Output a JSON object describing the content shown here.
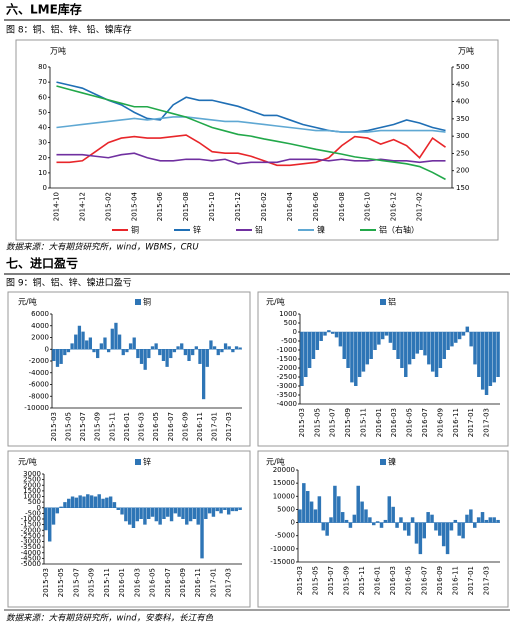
{
  "heading1": "六、LME库存",
  "caption1": "图 8：铜、铝、锌、铅、镍库存",
  "source1": "数据来源：大有期货研究所，wind，WBMS，CRU",
  "heading2": "七、进口盈亏",
  "caption2": "图 9：铜、铝、锌、镍进口盈亏",
  "source2": "数据来源：大有期货研究所，wind，安泰科，长江有色",
  "chart_data": [
    {
      "type": "line",
      "ylabel": "万吨",
      "y2label": "万吨",
      "categories": [
        "2014-10",
        null,
        "2014-12",
        null,
        "2015-02",
        null,
        "2015-04",
        null,
        "2015-06",
        null,
        "2015-08",
        null,
        "2015-10",
        null,
        "2015-12",
        null,
        "2016-02",
        null,
        "2016-04",
        null,
        "2016-06",
        null,
        "2016-08",
        null,
        "2016-10",
        null,
        "2016-12",
        null,
        "2017-02",
        null,
        null
      ],
      "ylim": [
        0,
        80
      ],
      "yticks": [
        0,
        10,
        20,
        30,
        40,
        50,
        60,
        70,
        80
      ],
      "y2lim": [
        150,
        500
      ],
      "y2ticks": [
        150,
        200,
        250,
        300,
        350,
        400,
        450,
        500
      ],
      "series": [
        {
          "name": "铜",
          "color": "#e8262a",
          "values": [
            17,
            17,
            18,
            24,
            30,
            33,
            34,
            33,
            33,
            34,
            35,
            30,
            24,
            23,
            23,
            21,
            18,
            15,
            15,
            16,
            17,
            20,
            28,
            34,
            33,
            29,
            32,
            28,
            20,
            33,
            27
          ]
        },
        {
          "name": "锌",
          "color": "#1f6fb5",
          "values": [
            70,
            68,
            66,
            62,
            58,
            55,
            50,
            46,
            45,
            55,
            60,
            58,
            58,
            56,
            54,
            51,
            48,
            48,
            45,
            42,
            40,
            38,
            37,
            37,
            38,
            40,
            42,
            45,
            43,
            40,
            38
          ]
        },
        {
          "name": "铅",
          "color": "#7030a0",
          "values": [
            22,
            22,
            22,
            21,
            20,
            22,
            23,
            20,
            18,
            18,
            19,
            19,
            18,
            19,
            16,
            17,
            17,
            17,
            19,
            19,
            19,
            18,
            19,
            18,
            18,
            19,
            18,
            18,
            17,
            18,
            18
          ]
        },
        {
          "name": "镍",
          "color": "#5fa8d3",
          "values": [
            40,
            41,
            42,
            43,
            44,
            45,
            46,
            45,
            46,
            47,
            47,
            46,
            45,
            44,
            44,
            43,
            42,
            41,
            40,
            39,
            38,
            38,
            37,
            37,
            37,
            38,
            38,
            38,
            38,
            38,
            37
          ]
        },
        {
          "name": "铝（右轴）",
          "color": "#22a84a",
          "axis": "y2",
          "values": [
            445,
            435,
            425,
            415,
            405,
            395,
            385,
            385,
            375,
            365,
            355,
            340,
            325,
            315,
            305,
            300,
            292,
            285,
            278,
            270,
            262,
            255,
            248,
            240,
            235,
            230,
            225,
            220,
            212,
            195,
            175
          ]
        }
      ]
    },
    {
      "type": "bar",
      "ylabel": "元/吨",
      "categories": [
        "2015-03",
        null,
        null,
        null,
        "2015-05",
        null,
        null,
        null,
        "2015-07",
        null,
        null,
        null,
        "2015-09",
        null,
        null,
        null,
        "2015-11",
        null,
        null,
        null,
        "2016-01",
        null,
        null,
        null,
        "2016-03",
        null,
        null,
        null,
        "2016-05",
        null,
        null,
        null,
        "2016-07",
        null,
        null,
        null,
        "2016-09",
        null,
        null,
        null,
        "2016-11",
        null,
        null,
        null,
        "2017-01",
        null,
        null,
        null,
        "2017-03",
        null,
        null,
        null
      ],
      "ylim": [
        -10000,
        6000
      ],
      "yticks": [
        -10000,
        -8000,
        -6000,
        -4000,
        -2000,
        0,
        2000,
        4000,
        6000
      ],
      "series": [
        {
          "name": "铜",
          "color": "#2e75b6",
          "values": [
            -2000,
            -3000,
            -2500,
            -1000,
            -500,
            1000,
            2500,
            4000,
            3000,
            1500,
            2000,
            -500,
            -1500,
            1000,
            2000,
            -500,
            3500,
            4500,
            2500,
            -1000,
            -500,
            1000,
            2000,
            -1500,
            -2500,
            -3500,
            -1500,
            500,
            1000,
            -1000,
            -2000,
            -3000,
            -1500,
            -500,
            500,
            1000,
            -1000,
            -2000,
            -1000,
            500,
            -2500,
            -8500,
            -3000,
            1500,
            500,
            -1000,
            -500,
            1000,
            500,
            -500,
            500,
            300
          ]
        }
      ]
    },
    {
      "type": "bar",
      "ylabel": "元/吨",
      "categories": [
        "2015-03",
        null,
        null,
        null,
        "2015-05",
        null,
        null,
        null,
        "2015-07",
        null,
        null,
        null,
        "2015-09",
        null,
        null,
        null,
        "2015-11",
        null,
        null,
        null,
        "2016-01",
        null,
        null,
        null,
        "2016-03",
        null,
        null,
        null,
        "2016-05",
        null,
        null,
        null,
        "2016-07",
        null,
        null,
        null,
        "2016-09",
        null,
        null,
        null,
        "2016-11",
        null,
        null,
        null,
        "2017-01",
        null,
        null,
        null,
        "2017-03",
        null,
        null,
        null
      ],
      "ylim": [
        -4000,
        1000
      ],
      "yticks": [
        -4000,
        -3500,
        -3000,
        -2500,
        -2000,
        -1500,
        -1000,
        -500,
        0,
        500,
        1000
      ],
      "series": [
        {
          "name": "铝",
          "color": "#2e75b6",
          "values": [
            -3000,
            -2500,
            -2000,
            -1500,
            -1000,
            -500,
            -200,
            100,
            -100,
            -300,
            -800,
            -1500,
            -2000,
            -2800,
            -3000,
            -2500,
            -2200,
            -1800,
            -1500,
            -1000,
            -700,
            -400,
            -200,
            -600,
            -1000,
            -1500,
            -2000,
            -2500,
            -1800,
            -1500,
            -1200,
            -1000,
            -1300,
            -1800,
            -2200,
            -2500,
            -2000,
            -1500,
            -1000,
            -800,
            -600,
            -400,
            -200,
            300,
            -800,
            -1800,
            -2500,
            -3200,
            -3500,
            -3000,
            -2800,
            -2500
          ]
        }
      ]
    },
    {
      "type": "bar",
      "ylabel": "元/吨",
      "categories": [
        "2015-03",
        null,
        null,
        null,
        "2015-05",
        null,
        null,
        null,
        "2015-07",
        null,
        null,
        null,
        "2015-09",
        null,
        null,
        null,
        "2015-11",
        null,
        null,
        null,
        "2016-01",
        null,
        null,
        null,
        "2016-03",
        null,
        null,
        null,
        "2016-05",
        null,
        null,
        null,
        "2016-07",
        null,
        null,
        null,
        "2016-09",
        null,
        null,
        null,
        "2016-11",
        null,
        null,
        null,
        "2017-01",
        null,
        null,
        null,
        "2017-03",
        null,
        null,
        null
      ],
      "ylim": [
        -5000,
        3000
      ],
      "yticks": [
        -5000,
        -4500,
        -4000,
        -3500,
        -3000,
        -2500,
        -2000,
        -1500,
        -1000,
        -500,
        0,
        500,
        1000,
        1500,
        2000,
        2500,
        3000
      ],
      "series": [
        {
          "name": "锌",
          "color": "#2e75b6",
          "values": [
            -2000,
            -3000,
            -1500,
            -500,
            100,
            500,
            800,
            1000,
            900,
            1100,
            1000,
            1200,
            1100,
            1000,
            1200,
            800,
            900,
            1000,
            500,
            -200,
            -600,
            -1200,
            -1500,
            -1800,
            -1200,
            -1000,
            -1500,
            -1000,
            -800,
            -1200,
            -1500,
            -1000,
            -800,
            -1200,
            -500,
            -800,
            -1000,
            -1500,
            -1200,
            -1000,
            -1500,
            -4500,
            -1000,
            -500,
            -800,
            -300,
            -500,
            -200,
            -600,
            -300,
            -300,
            -200
          ]
        }
      ]
    },
    {
      "type": "bar",
      "ylabel": "元/吨",
      "categories": [
        "2015-03",
        null,
        null,
        null,
        "2015-05",
        null,
        null,
        null,
        "2015-07",
        null,
        null,
        null,
        "2015-09",
        null,
        null,
        null,
        "2015-11",
        null,
        null,
        null,
        "2016-01",
        null,
        null,
        null,
        "2016-03",
        null,
        null,
        null,
        "2016-05",
        null,
        null,
        null,
        "2016-07",
        null,
        null,
        null,
        "2016-09",
        null,
        null,
        null,
        "2016-11",
        null,
        null,
        null,
        "2017-01",
        null,
        null,
        null,
        "2017-03",
        null,
        null,
        null
      ],
      "ylim": [
        -15000,
        20000
      ],
      "yticks": [
        -15000,
        -10000,
        -5000,
        0,
        5000,
        10000,
        15000,
        20000
      ],
      "series": [
        {
          "name": "镍",
          "color": "#2e75b6",
          "values": [
            5000,
            15000,
            12000,
            8000,
            5000,
            10000,
            -3000,
            -5000,
            2000,
            14000,
            10000,
            4000,
            1000,
            -2000,
            3000,
            14000,
            8000,
            5000,
            2000,
            -1000,
            500,
            -2000,
            1000,
            10000,
            6000,
            -2000,
            2000,
            -3000,
            -5000,
            2000,
            -8000,
            -12000,
            -6000,
            4000,
            3000,
            -3000,
            -5000,
            -9000,
            -12000,
            -3000,
            1000,
            -5000,
            -6000,
            3000,
            5000,
            -2000,
            2000,
            4000,
            1000,
            2000,
            2000,
            1000
          ]
        }
      ]
    }
  ]
}
